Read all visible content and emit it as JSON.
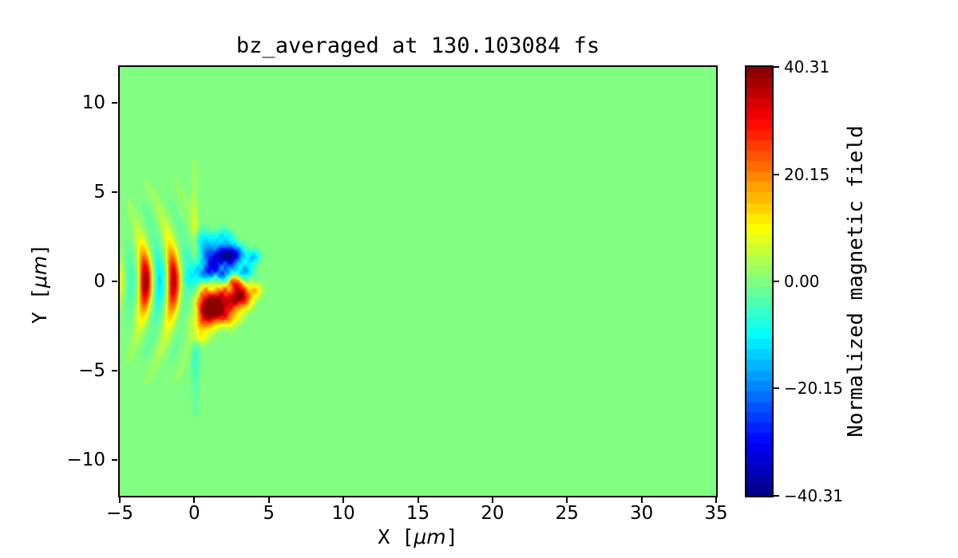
{
  "chart_data": {
    "type": "heatmap",
    "title": "bz_averaged at 130.103084 fs",
    "xlabel": "X [μm]",
    "ylabel": "Y [μm]",
    "xlabel_parts": {
      "pre": "X [",
      "unit": "μm",
      "post": "]"
    },
    "ylabel_parts": {
      "pre": "Y [",
      "unit": "μm",
      "post": "]"
    },
    "colorbar_label": "Normalized magnetic field",
    "colormap": "jet",
    "levels": 41,
    "grid": false,
    "x_range": [
      -5,
      35
    ],
    "y_range": [
      -12,
      12
    ],
    "vmin": -40.31,
    "vmax": 40.31,
    "background_value": 0,
    "x_ticks": [
      {
        "value": -5,
        "label": "−5"
      },
      {
        "value": 0,
        "label": "0"
      },
      {
        "value": 5,
        "label": "5"
      },
      {
        "value": 10,
        "label": "10"
      },
      {
        "value": 15,
        "label": "15"
      },
      {
        "value": 20,
        "label": "20"
      },
      {
        "value": 25,
        "label": "25"
      },
      {
        "value": 30,
        "label": "30"
      },
      {
        "value": 35,
        "label": "35"
      }
    ],
    "y_ticks": [
      {
        "value": 10,
        "label": "10"
      },
      {
        "value": 5,
        "label": "5"
      },
      {
        "value": 0,
        "label": "0"
      },
      {
        "value": -5,
        "label": "−5"
      },
      {
        "value": -10,
        "label": "−10"
      }
    ],
    "colorbar_ticks": [
      {
        "value": 40.31,
        "label": "40.31"
      },
      {
        "value": 20.15,
        "label": "20.15"
      },
      {
        "value": 0.0,
        "label": "0.00"
      },
      {
        "value": -20.15,
        "label": "−20.15"
      },
      {
        "value": -40.31,
        "label": "−40.31"
      }
    ],
    "field": {
      "description": "normalized Bz of laser-plasma interaction: vertical laser half-cycle stripes for x<0 at y≈0, turbulent dipolar blob cluster for 0<x<4.5 (negative above axis, positive below), uniform 0 elsewhere",
      "laser": {
        "x_center": -2.4,
        "sigma_x": 1.55,
        "wavelength": 1.95,
        "phase_x0": -1.35,
        "curvature": 0.06,
        "core_amp": 30,
        "core_sigma_y": 1.15,
        "halo_amp": 9,
        "halo_sigma_y": 2.9,
        "neg_scale": 0.45
      },
      "blobs": [
        {
          "x": 1.5,
          "y": 1.35,
          "sx": 0.85,
          "sy": 0.5,
          "a": -30
        },
        {
          "x": 0.95,
          "y": 0.55,
          "sx": 0.45,
          "sy": 0.35,
          "a": -20
        },
        {
          "x": 2.55,
          "y": 1.5,
          "sx": 0.5,
          "sy": 0.38,
          "a": -26
        },
        {
          "x": 3.4,
          "y": 0.55,
          "sx": 0.35,
          "sy": 0.3,
          "a": -16
        },
        {
          "x": 0.55,
          "y": 2.3,
          "sx": 0.45,
          "sy": 0.4,
          "a": -12
        },
        {
          "x": 1.95,
          "y": 2.5,
          "sx": 0.4,
          "sy": 0.3,
          "a": -11
        },
        {
          "x": 3.95,
          "y": 1.35,
          "sx": 0.3,
          "sy": 0.27,
          "a": -14
        },
        {
          "x": 2.1,
          "y": 0.4,
          "sx": 0.5,
          "sy": 0.3,
          "a": -15
        },
        {
          "x": 0.2,
          "y": 0.3,
          "sx": 0.4,
          "sy": 0.45,
          "a": -13
        },
        {
          "x": 1.55,
          "y": -1.25,
          "sx": 0.8,
          "sy": 0.62,
          "a": 40
        },
        {
          "x": 1.05,
          "y": -1.6,
          "sx": 0.45,
          "sy": 0.42,
          "a": 28
        },
        {
          "x": 3.1,
          "y": -0.85,
          "sx": 0.48,
          "sy": 0.42,
          "a": 36
        },
        {
          "x": 2.75,
          "y": -0.05,
          "sx": 0.32,
          "sy": 0.3,
          "a": 24
        },
        {
          "x": 0.55,
          "y": -2.35,
          "sx": 0.55,
          "sy": 0.35,
          "a": 14
        },
        {
          "x": 0.35,
          "y": -3.1,
          "sx": 0.45,
          "sy": 0.3,
          "a": 10
        },
        {
          "x": 2.3,
          "y": -2.05,
          "sx": 0.45,
          "sy": 0.3,
          "a": 11
        },
        {
          "x": 4.1,
          "y": -0.5,
          "sx": 0.3,
          "sy": 0.25,
          "a": 12
        },
        {
          "x": -2.6,
          "y": 0.0,
          "sx": 1.6,
          "sy": 1.4,
          "a": 6
        },
        {
          "x": 0.0,
          "y": 2.6,
          "sx": 0.18,
          "sy": 2.2,
          "a": 6
        },
        {
          "x": 0.05,
          "y": -3.2,
          "sx": 0.2,
          "sy": 2.4,
          "a": -6
        }
      ],
      "noise": {
        "amp": 9,
        "cx": 1.9,
        "cy": 0,
        "sx": 1.35,
        "sy": 1.55
      }
    }
  }
}
